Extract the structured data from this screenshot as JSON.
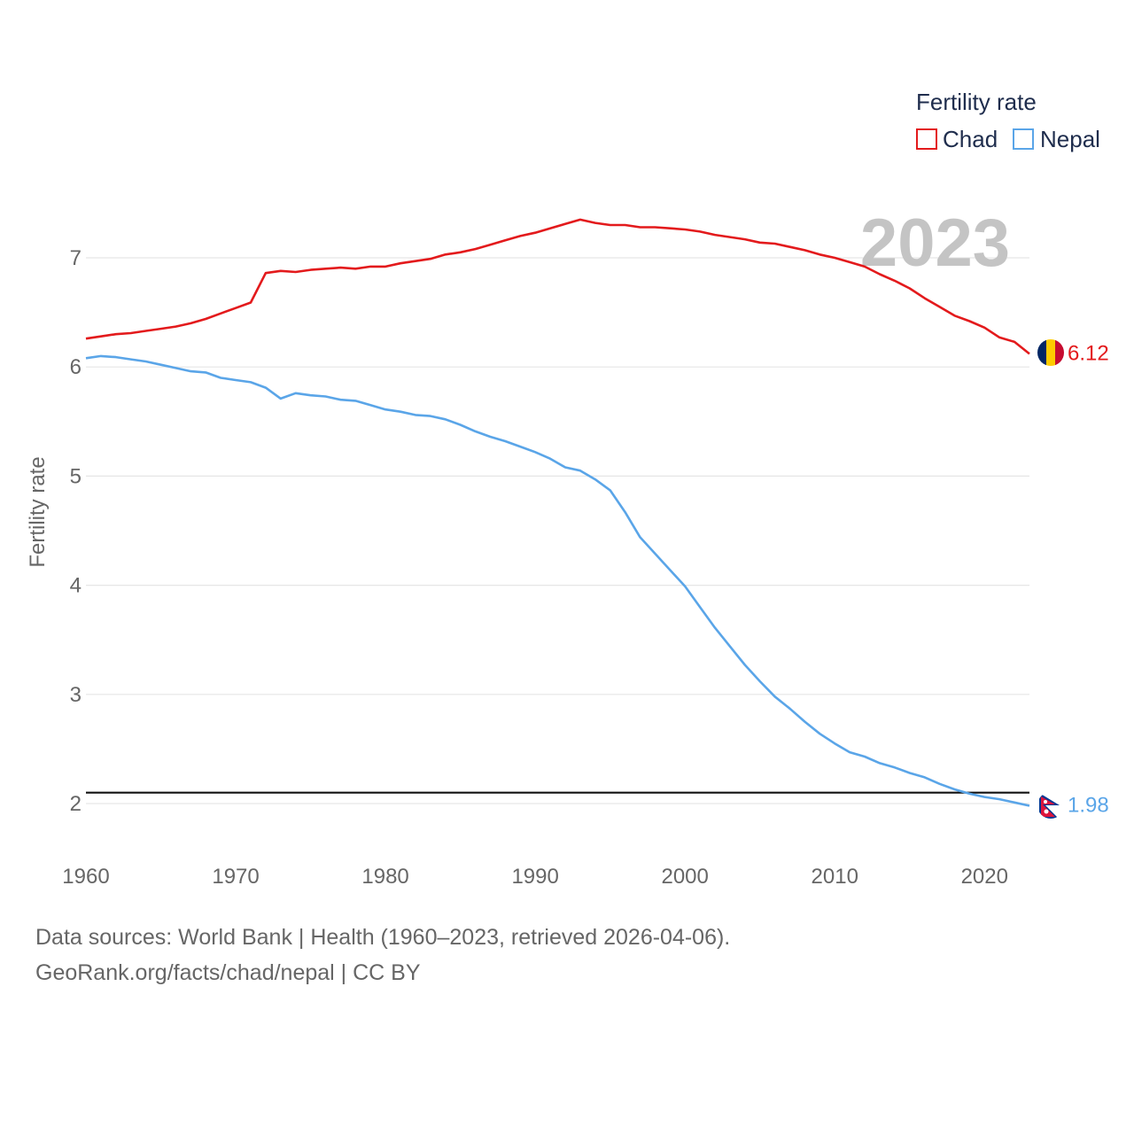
{
  "chart_data": {
    "type": "line",
    "title": "",
    "xlabel": "",
    "ylabel": "Fertility rate",
    "xlim": [
      1960,
      2023
    ],
    "ylim": [
      1.6,
      7.6
    ],
    "x_ticks": [
      1960,
      1970,
      1980,
      1990,
      2000,
      2010,
      2020
    ],
    "y_ticks": [
      2,
      3,
      4,
      5,
      6,
      7
    ],
    "legend_title": "Fertility rate",
    "legend_position": "top-right",
    "highlight_year": "2023",
    "reference_line": 2.1,
    "x": [
      1960,
      1961,
      1962,
      1963,
      1964,
      1965,
      1966,
      1967,
      1968,
      1969,
      1970,
      1971,
      1972,
      1973,
      1974,
      1975,
      1976,
      1977,
      1978,
      1979,
      1980,
      1981,
      1982,
      1983,
      1984,
      1985,
      1986,
      1987,
      1988,
      1989,
      1990,
      1991,
      1992,
      1993,
      1994,
      1995,
      1996,
      1997,
      1998,
      1999,
      2000,
      2001,
      2002,
      2003,
      2004,
      2005,
      2006,
      2007,
      2008,
      2009,
      2010,
      2011,
      2012,
      2013,
      2014,
      2015,
      2016,
      2017,
      2018,
      2019,
      2020,
      2021,
      2022,
      2023
    ],
    "series": [
      {
        "name": "Chad",
        "color": "#e31a1c",
        "end_label": "6.12",
        "values": [
          6.26,
          6.28,
          6.3,
          6.31,
          6.33,
          6.35,
          6.37,
          6.4,
          6.44,
          6.49,
          6.54,
          6.59,
          6.86,
          6.88,
          6.87,
          6.89,
          6.9,
          6.91,
          6.9,
          6.92,
          6.92,
          6.95,
          6.97,
          6.99,
          7.03,
          7.05,
          7.08,
          7.12,
          7.16,
          7.2,
          7.23,
          7.27,
          7.31,
          7.35,
          7.32,
          7.3,
          7.3,
          7.28,
          7.28,
          7.27,
          7.26,
          7.24,
          7.21,
          7.19,
          7.17,
          7.14,
          7.13,
          7.1,
          7.07,
          7.03,
          7.0,
          6.96,
          6.92,
          6.85,
          6.79,
          6.72,
          6.63,
          6.55,
          6.47,
          6.42,
          6.36,
          6.27,
          6.23,
          6.12
        ]
      },
      {
        "name": "Nepal",
        "color": "#5aa5e8",
        "end_label": "1.98",
        "values": [
          6.08,
          6.1,
          6.09,
          6.07,
          6.05,
          6.02,
          5.99,
          5.96,
          5.95,
          5.9,
          5.88,
          5.86,
          5.81,
          5.71,
          5.76,
          5.74,
          5.73,
          5.7,
          5.69,
          5.65,
          5.61,
          5.59,
          5.56,
          5.55,
          5.52,
          5.47,
          5.41,
          5.36,
          5.32,
          5.27,
          5.22,
          5.16,
          5.08,
          5.05,
          4.97,
          4.87,
          4.67,
          4.44,
          4.29,
          4.14,
          3.99,
          3.8,
          3.61,
          3.44,
          3.27,
          3.12,
          2.98,
          2.87,
          2.75,
          2.64,
          2.55,
          2.47,
          2.43,
          2.37,
          2.33,
          2.28,
          2.24,
          2.18,
          2.13,
          2.09,
          2.06,
          2.04,
          2.01,
          1.98
        ]
      }
    ]
  },
  "footer": {
    "line1": "Data sources: World Bank | Health (1960–2023, retrieved 2026-04-06).",
    "line2": "GeoRank.org/facts/chad/nepal | CC BY"
  }
}
